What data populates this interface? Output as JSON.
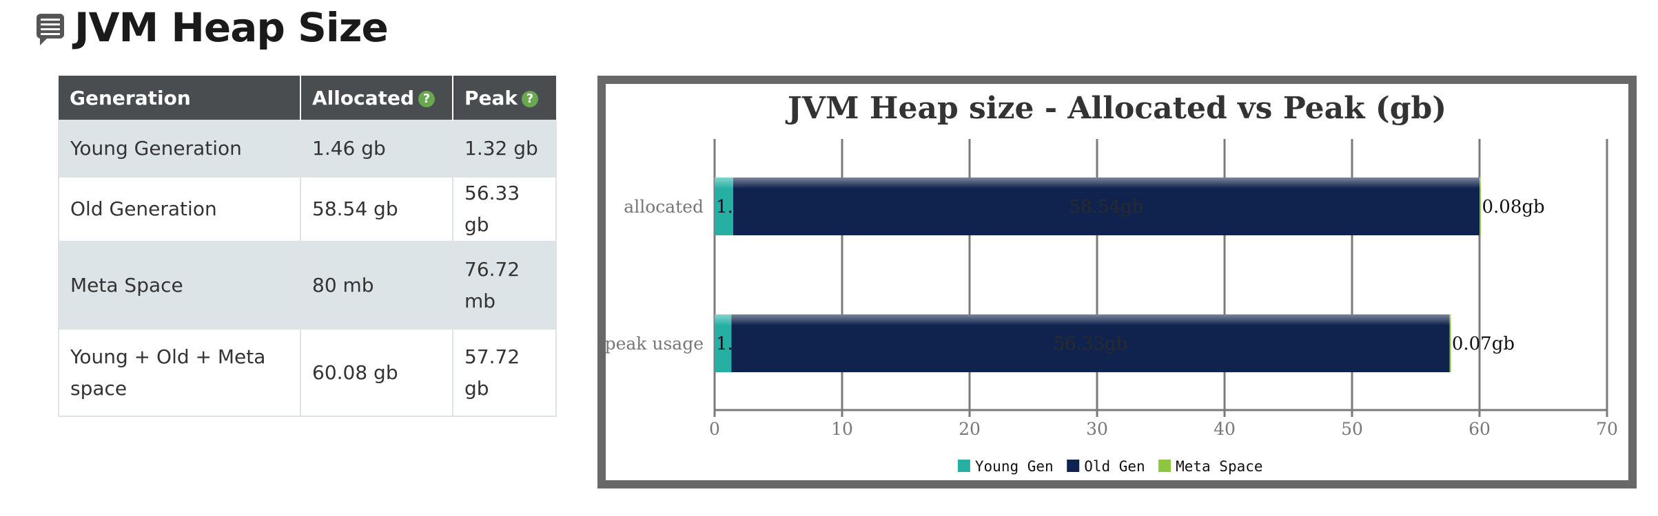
{
  "heading": {
    "title": "JVM Heap Size"
  },
  "table": {
    "headers": {
      "generation": "Generation",
      "allocated": "Allocated",
      "peak": "Peak",
      "help_glyph": "?"
    },
    "rows": [
      {
        "generation": "Young Generation",
        "allocated": "1.46 gb",
        "peak": "1.32 gb"
      },
      {
        "generation": "Old Generation",
        "allocated": "58.54 gb",
        "peak": "56.33 gb"
      },
      {
        "generation": "Meta Space",
        "allocated": "80 mb",
        "peak": "76.72 mb"
      },
      {
        "generation": "Young + Old + Meta space",
        "allocated": "60.08 gb",
        "peak": "57.72 gb"
      }
    ]
  },
  "chart_data": {
    "type": "bar",
    "orientation": "horizontal",
    "stacked": true,
    "title": "JVM Heap size - Allocated vs Peak (gb)",
    "categories": [
      "allocated",
      "peak usage"
    ],
    "series": [
      {
        "name": "Young Gen",
        "values": [
          1.46,
          1.32
        ],
        "labels": [
          "1.46gb",
          "1.32gb"
        ],
        "color": "#26b0a4"
      },
      {
        "name": "Old Gen",
        "values": [
          58.54,
          56.33
        ],
        "labels": [
          "58.54gb",
          "56.33gb"
        ],
        "color": "#10234e"
      },
      {
        "name": "Meta Space",
        "values": [
          0.08,
          0.07
        ],
        "labels": [
          "0.08gb",
          "0.07gb"
        ],
        "color": "#8dc63f"
      }
    ],
    "xlim": [
      0,
      70
    ],
    "xticks": [
      0,
      10,
      20,
      30,
      40,
      50,
      60,
      70
    ],
    "grid": true,
    "legend": "bottom-center"
  }
}
